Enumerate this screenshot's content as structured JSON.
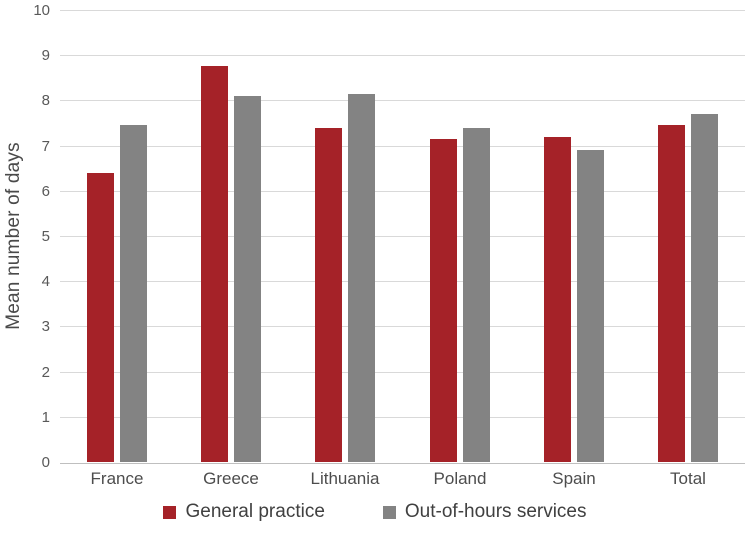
{
  "chart_data": {
    "type": "bar",
    "title": "",
    "xlabel": "",
    "ylabel": "Mean number of days",
    "categories": [
      "France",
      "Greece",
      "Lithuania",
      "Poland",
      "Spain",
      "Total"
    ],
    "series": [
      {
        "name": "General practice",
        "color": "#a52228",
        "values": [
          6.4,
          8.75,
          7.4,
          7.15,
          7.2,
          7.45
        ]
      },
      {
        "name": "Out-of-hours services",
        "color": "#838383",
        "values": [
          7.45,
          8.1,
          8.15,
          7.4,
          6.9,
          7.7
        ]
      }
    ],
    "ylim": [
      0,
      10
    ],
    "yticks": [
      0,
      1,
      2,
      3,
      4,
      5,
      6,
      7,
      8,
      9,
      10
    ],
    "grid": true,
    "legend_position": "bottom",
    "style": {
      "gridline_color": "#d9d9d9",
      "axis_line_color": "#bfbfbf",
      "tick_label_color": "#595959",
      "category_label_color": "#4d4d4d",
      "legend_text_color": "#404040",
      "axis_title_color": "#4a4a4a",
      "background": "#ffffff"
    }
  }
}
